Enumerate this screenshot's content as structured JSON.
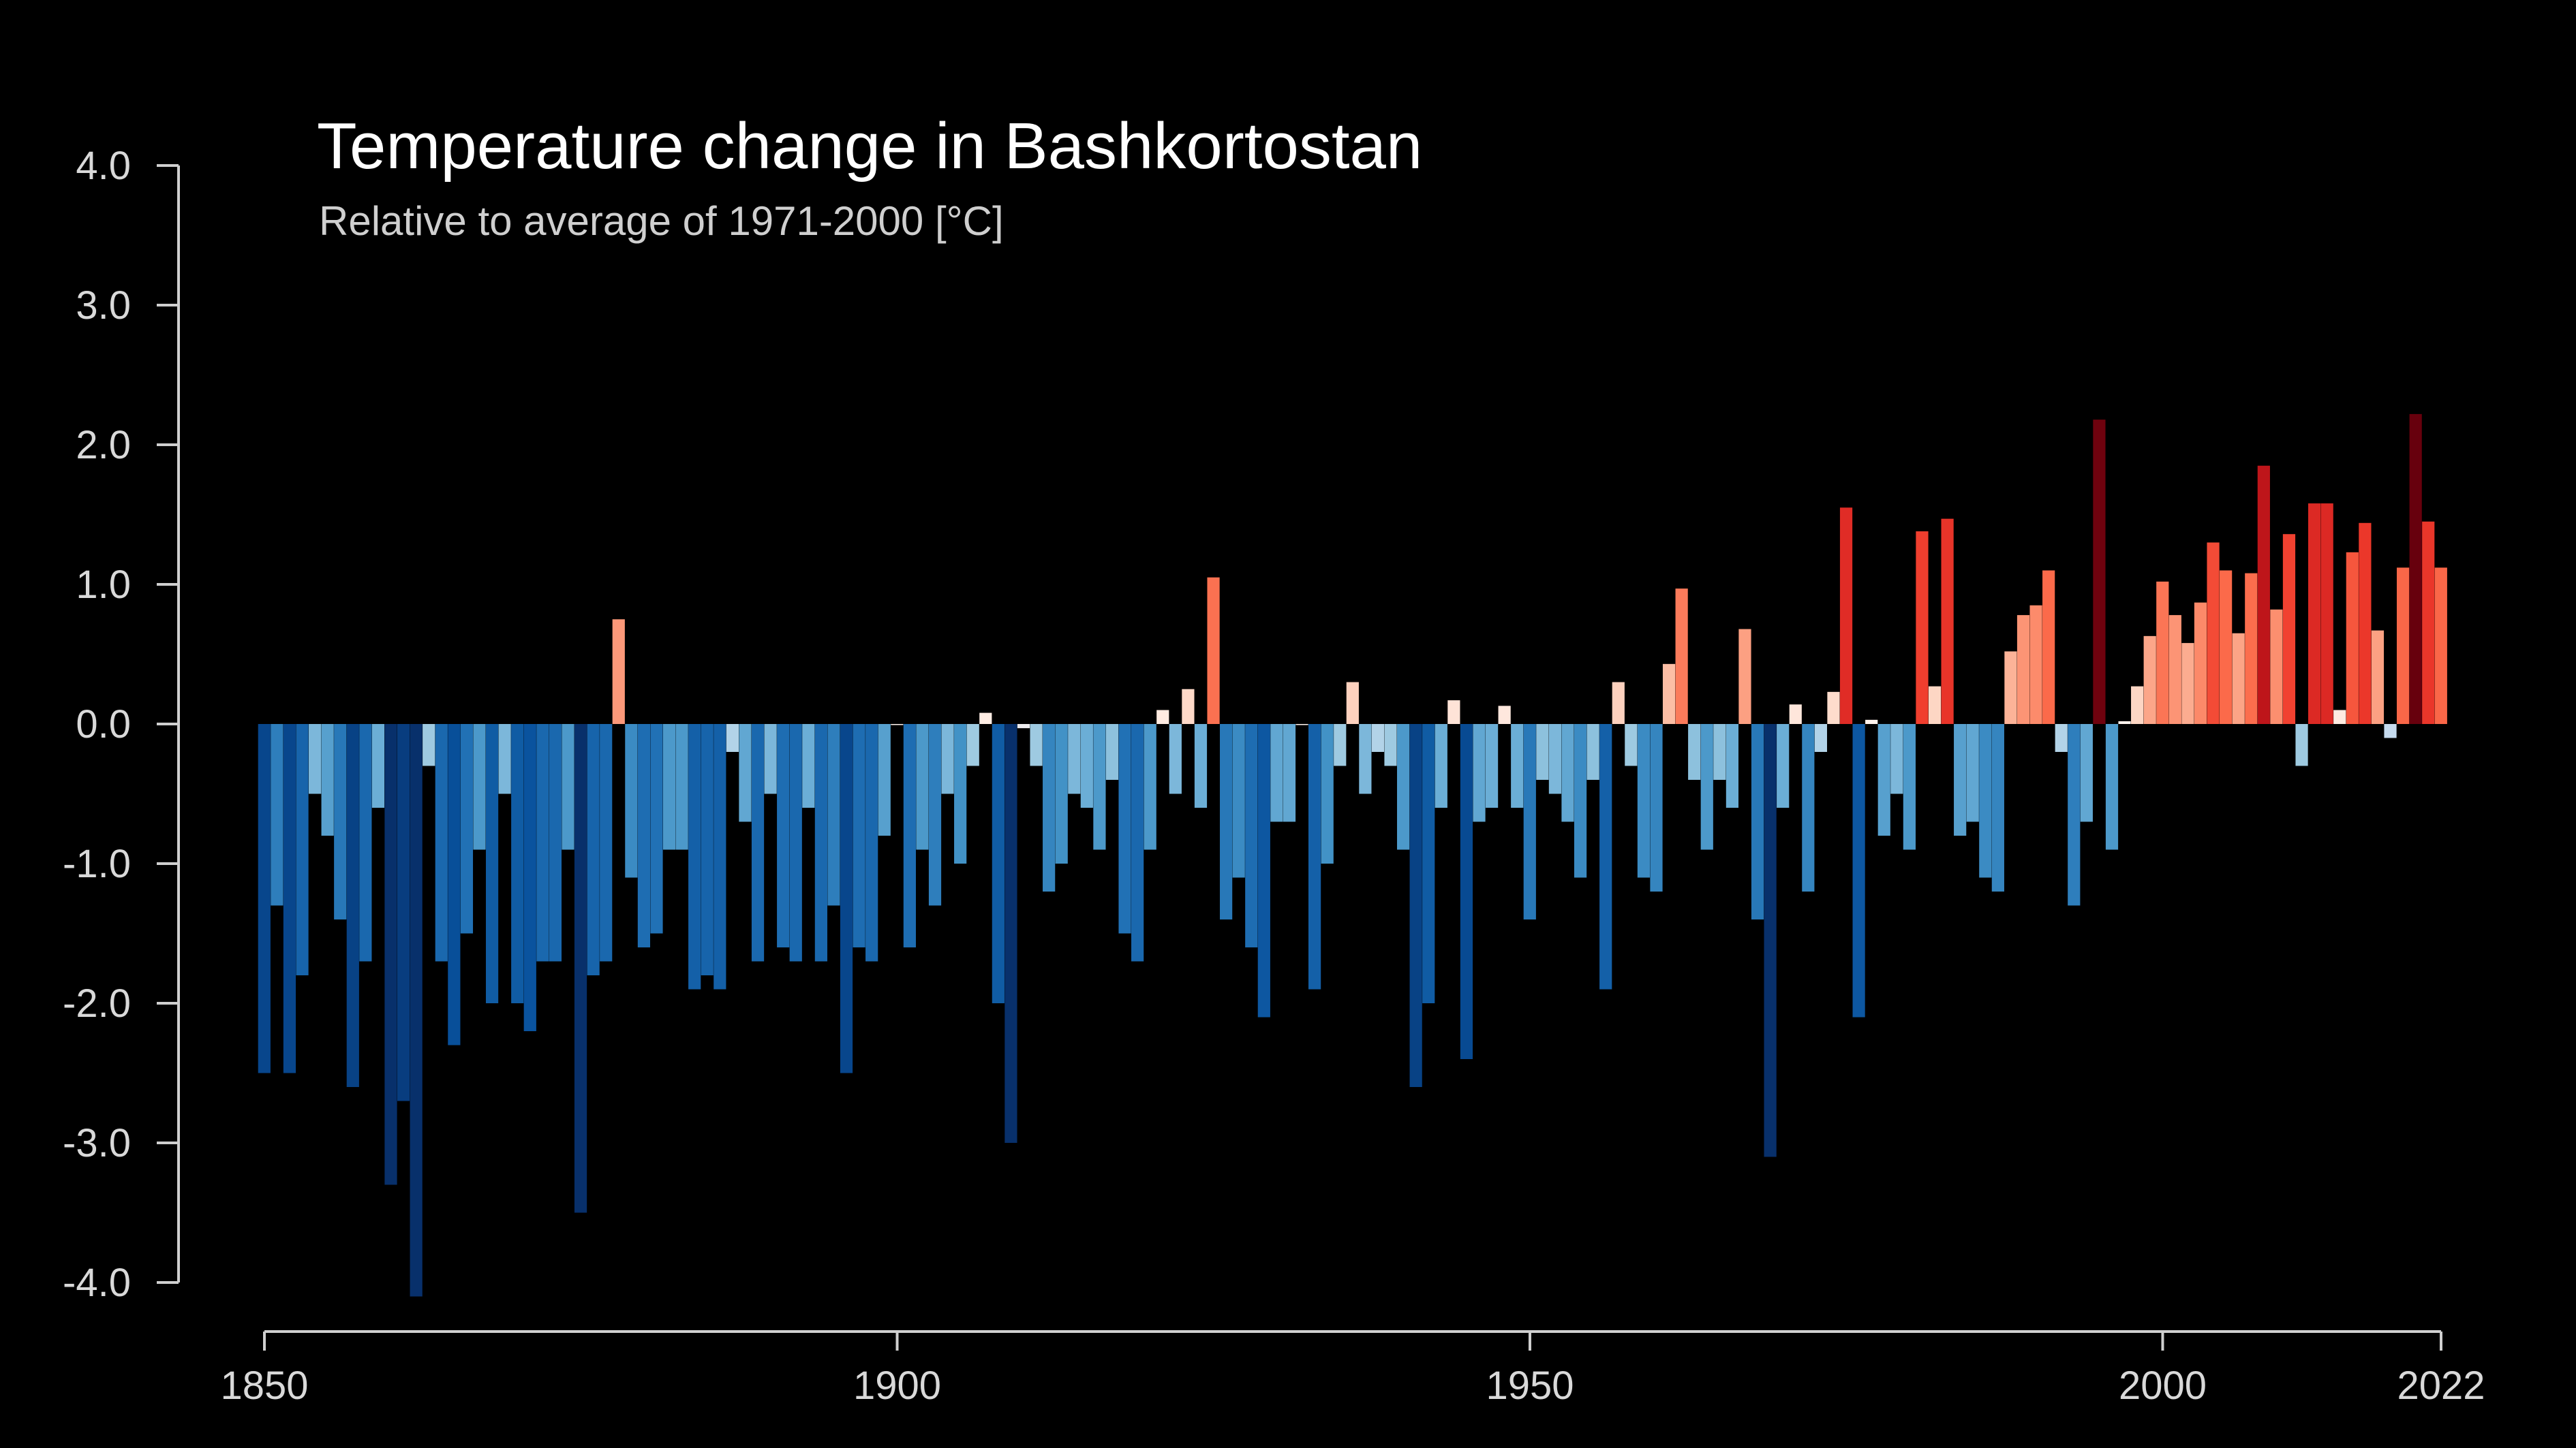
{
  "chart_data": {
    "type": "bar",
    "title": "Temperature change in Bashkortostan",
    "subtitle": "Relative to average of 1971-2000  [°C]",
    "xlabel": "",
    "ylabel": "",
    "xlim": [
      1850,
      2022
    ],
    "ylim": [
      -4.0,
      4.0
    ],
    "x_ticks": [
      1850,
      1900,
      1950,
      2000,
      2022
    ],
    "x_tick_labels": [
      "1850",
      "1900",
      "1950",
      "2000",
      "2022"
    ],
    "y_ticks": [
      4.0,
      3.0,
      2.0,
      1.0,
      0.0,
      -1.0,
      -2.0,
      -3.0,
      -4.0
    ],
    "y_tick_labels": [
      "4.0",
      "3.0",
      "2.0",
      "1.0",
      "0.0",
      "-1.0",
      "-2.0",
      "-3.0",
      "-4.0"
    ],
    "grid": false,
    "legend": "none",
    "colormap": "blue-white-red",
    "colors": {
      "background": "#000000",
      "cold_extreme": "#08306b",
      "neutral": "#fff5f0",
      "warm_extreme": "#67000d"
    },
    "start_year": 1850,
    "values": [
      -2.5,
      -1.3,
      -2.5,
      -1.8,
      -0.5,
      -0.8,
      -1.4,
      -2.6,
      -1.7,
      -0.6,
      -3.3,
      -2.7,
      -4.1,
      -0.3,
      -1.7,
      -2.3,
      -1.5,
      -0.9,
      -2.0,
      -0.5,
      -2.0,
      -2.2,
      -1.7,
      -1.7,
      -0.9,
      -3.5,
      -1.8,
      -1.7,
      0.75,
      -1.1,
      -1.6,
      -1.5,
      -0.9,
      -0.9,
      -1.9,
      -1.8,
      -1.9,
      -0.2,
      -0.7,
      -1.7,
      -0.5,
      -1.6,
      -1.7,
      -0.6,
      -1.7,
      -1.3,
      -2.5,
      -1.6,
      -1.7,
      -0.8,
      -0.0,
      -1.6,
      -0.9,
      -1.3,
      -0.5,
      -1.0,
      -0.3,
      0.08,
      -2.0,
      -3.0,
      -0.03,
      -0.3,
      -1.2,
      -1.0,
      -0.5,
      -0.6,
      -0.9,
      -0.4,
      -1.5,
      -1.7,
      -0.9,
      0.1,
      -0.5,
      0.25,
      -0.6,
      1.05,
      -1.4,
      -1.1,
      -1.6,
      -2.1,
      -0.7,
      -0.7,
      0.0,
      -1.9,
      -1.0,
      -0.3,
      0.3,
      -0.5,
      -0.2,
      -0.3,
      -0.9,
      -2.6,
      -2.0,
      -0.6,
      0.17,
      -2.4,
      -0.7,
      -0.6,
      0.13,
      -0.6,
      -1.4,
      -0.4,
      -0.5,
      -0.7,
      -1.1,
      -0.4,
      -1.9,
      0.3,
      -0.3,
      -1.1,
      -1.2,
      0.43,
      0.97,
      -0.4,
      -0.9,
      -0.4,
      -0.6,
      0.68,
      -1.4,
      -3.1,
      -0.6,
      0.14,
      -1.2,
      -0.2,
      0.23,
      1.55,
      -2.1,
      0.03,
      -0.8,
      -0.5,
      -0.9,
      1.38,
      0.27,
      1.47,
      -0.8,
      -0.7,
      -1.1,
      -1.2,
      0.52,
      0.78,
      0.85,
      1.1,
      -0.2,
      -1.3,
      -0.7,
      2.18,
      -0.9,
      0.02,
      0.27,
      0.63,
      1.02,
      0.78,
      0.58,
      0.87,
      1.3,
      1.1,
      0.65,
      1.08,
      1.85,
      0.82,
      1.36,
      -0.3,
      1.58,
      1.58,
      0.1,
      1.23,
      1.44,
      0.67,
      -0.1,
      1.12,
      2.22,
      1.45,
      1.12
    ]
  }
}
